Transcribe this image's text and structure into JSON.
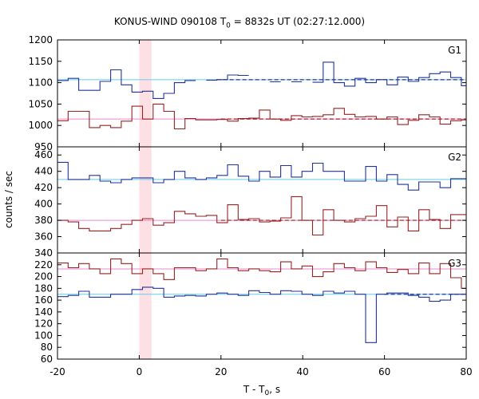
{
  "chart_data": {
    "type": "line",
    "title": "KONUS-WIND 090108 T0 = 8832s UT (02:27:12.000)",
    "title_parts": {
      "prefix": "KONUS-WIND 090108 T",
      "subscript": "0",
      "suffix": " = 8832s UT (02:27:12.000)"
    },
    "xlabel": "T - T0, s",
    "xlabel_parts": {
      "prefix": "T - T",
      "subscript": "0",
      "suffix": ", s"
    },
    "ylabel": "counts / sec",
    "xlim": [
      -20,
      80
    ],
    "xticks": [
      -20,
      0,
      20,
      40,
      60,
      80
    ],
    "highlight_interval": [
      0,
      3
    ],
    "colors": {
      "high": "#223399",
      "high_bg": "#66ccee",
      "low": "#992222",
      "low_bg": "#ee88cc",
      "shade": "#fde0e4"
    },
    "panels": [
      {
        "name": "G1",
        "ylim": [
          950,
          1200
        ],
        "yticks": [
          950,
          1000,
          1050,
          1100,
          1150,
          1200
        ],
        "series": [
          {
            "name": "G1 high-count curve",
            "color": "high",
            "x": [
              -20,
              -17.4,
              -14.8,
              -12.2,
              -9.6,
              -7,
              -4.4,
              -1.8,
              0.8,
              3.4,
              6,
              8.6,
              11.2,
              13.8,
              16.4,
              19,
              21.6,
              24.2,
              26.8,
              29.4,
              32,
              34.6,
              37.2,
              39.8,
              42.4,
              45,
              47.6,
              50.2,
              52.8,
              55.4,
              58,
              60.6,
              63.2,
              65.8,
              68.4,
              71,
              73.6,
              76.2,
              78.8,
              80
            ],
            "y": [
              1105,
              1110,
              1082,
              1082,
              1103,
              1130,
              1095,
              1078,
              1080,
              1063,
              1075,
              1100,
              1105,
              null,
              1106,
              1107,
              1118,
              1117,
              null,
              null,
              1102,
              null,
              1102,
              null,
              1101,
              1148,
              1100,
              1092,
              1110,
              1100,
              1107,
              1095,
              1113,
              1103,
              1112,
              1121,
              1125,
              1112,
              1093,
              1093
            ],
            "baseline": 1107,
            "baseline_dash_from": 19
          },
          {
            "name": "G1 low-count curve",
            "color": "low",
            "x": [
              -20,
              -17.4,
              -14.8,
              -12.2,
              -9.6,
              -7,
              -4.4,
              -1.8,
              0.8,
              3.4,
              6,
              8.6,
              11.2,
              13.8,
              16.4,
              19,
              21.6,
              24.2,
              26.8,
              29.4,
              32,
              34.6,
              37.2,
              39.8,
              42.4,
              45,
              47.6,
              50.2,
              52.8,
              55.4,
              58,
              60.6,
              63.2,
              65.8,
              68.4,
              71,
              73.6,
              76.2,
              78.8,
              80
            ],
            "y": [
              1011,
              1033,
              1033,
              995,
              1000,
              995,
              1010,
              1045,
              1015,
              1050,
              1033,
              992,
              1016,
              1013,
              1013,
              1014,
              1010,
              1016,
              1017,
              1036,
              1015,
              1012,
              1023,
              1020,
              1021,
              1025,
              1040,
              1026,
              1020,
              1021,
              1015,
              1020,
              1002,
              1012,
              1025,
              1020,
              1003,
              1011,
              1013,
              1013
            ],
            "baseline": 1015,
            "baseline_dash_from": 20
          }
        ]
      },
      {
        "name": "G2",
        "ylim": [
          340,
          470
        ],
        "yticks": [
          340,
          360,
          380,
          400,
          420,
          440,
          460
        ],
        "series": [
          {
            "name": "G2 high-count curve",
            "color": "high",
            "x": [
              -20,
              -17.4,
              -14.8,
              -12.2,
              -9.6,
              -7,
              -4.4,
              -1.8,
              0.8,
              3.4,
              6,
              8.6,
              11.2,
              13.8,
              16.4,
              19,
              21.6,
              24.2,
              26.8,
              29.4,
              32,
              34.6,
              37.2,
              39.8,
              42.4,
              45,
              47.6,
              50.2,
              52.8,
              55.4,
              58,
              60.6,
              63.2,
              65.8,
              68.4,
              71,
              73.6,
              76.2,
              78.8,
              80
            ],
            "y": [
              451,
              430,
              430,
              435,
              428,
              426,
              430,
              432,
              432,
              426,
              430,
              440,
              432,
              430,
              432,
              435,
              448,
              434,
              428,
              440,
              433,
              447,
              433,
              440,
              450,
              440,
              440,
              428,
              428,
              446,
              428,
              436,
              424,
              417,
              427,
              427,
              420,
              431,
              431,
              431
            ],
            "baseline": 430,
            "baseline_dash_from": 100
          },
          {
            "name": "G2 low-count curve",
            "color": "low",
            "x": [
              -20,
              -17.4,
              -14.8,
              -12.2,
              -9.6,
              -7,
              -4.4,
              -1.8,
              0.8,
              3.4,
              6,
              8.6,
              11.2,
              13.8,
              16.4,
              19,
              21.6,
              24.2,
              26.8,
              29.4,
              32,
              34.6,
              37.2,
              39.8,
              42.4,
              45,
              47.6,
              50.2,
              52.8,
              55.4,
              58,
              60.6,
              63.2,
              65.8,
              68.4,
              71,
              73.6,
              76.2,
              78.8,
              80
            ],
            "y": [
              380,
              378,
              370,
              367,
              367,
              370,
              375,
              380,
              382,
              374,
              377,
              391,
              388,
              385,
              386,
              377,
              399,
              381,
              382,
              378,
              379,
              383,
              409,
              380,
              362,
              393,
              380,
              378,
              382,
              385,
              398,
              372,
              384,
              367,
              393,
              381,
              370,
              387,
              387,
              387
            ],
            "baseline": 380,
            "baseline_dash_from": 20
          }
        ]
      },
      {
        "name": "G3",
        "ylim": [
          60,
          240
        ],
        "yticks": [
          60,
          80,
          100,
          120,
          140,
          160,
          180,
          200,
          220
        ],
        "series": [
          {
            "name": "G3 low-count curve",
            "color": "low",
            "x": [
              -20,
              -17.4,
              -14.8,
              -12.2,
              -9.6,
              -7,
              -4.4,
              -1.8,
              0.8,
              3.4,
              6,
              8.6,
              11.2,
              13.8,
              16.4,
              19,
              21.6,
              24.2,
              26.8,
              29.4,
              32,
              34.6,
              37.2,
              39.8,
              42.4,
              45,
              47.6,
              50.2,
              52.8,
              55.4,
              58,
              60.6,
              63.2,
              65.8,
              68.4,
              71,
              73.6,
              76.2,
              78.8,
              80
            ],
            "y": [
              223,
              215,
              222,
              213,
              205,
              230,
              222,
              205,
              213,
              205,
              195,
              215,
              215,
              210,
              213,
              230,
              215,
              210,
              213,
              210,
              208,
              225,
              213,
              218,
              200,
              208,
              222,
              215,
              210,
              225,
              215,
              207,
              212,
              205,
              223,
              205,
              222,
              198,
              180,
              180
            ],
            "baseline": 213,
            "baseline_dash_from": 100
          },
          {
            "name": "G3 high-count curve",
            "color": "high",
            "x": [
              -20,
              -17.4,
              -14.8,
              -12.2,
              -9.6,
              -7,
              -4.4,
              -1.8,
              0.8,
              3.4,
              6,
              8.6,
              11.2,
              13.8,
              16.4,
              19,
              21.6,
              24.2,
              26.8,
              29.4,
              32,
              34.6,
              37.2,
              39.8,
              42.4,
              45,
              47.6,
              50.2,
              52.8,
              55.4,
              58,
              60.6,
              63.2,
              65.8,
              68.4,
              71,
              73.6,
              76.2,
              78.8,
              80
            ],
            "y": [
              166,
              168,
              175,
              165,
              165,
              170,
              170,
              178,
              182,
              180,
              165,
              167,
              168,
              167,
              170,
              172,
              170,
              168,
              176,
              173,
              170,
              176,
              175,
              170,
              168,
              175,
              172,
              175,
              170,
              88,
              170,
              172,
              172,
              168,
              165,
              158,
              160,
              170,
              170,
              170
            ],
            "baseline": 170,
            "baseline_dash_from": 60
          }
        ]
      }
    ]
  }
}
